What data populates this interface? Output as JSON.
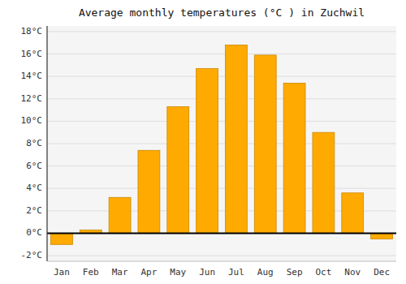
{
  "chart_data": {
    "type": "bar",
    "title": "Average monthly temperatures (°C ) in Zuchwil",
    "categories": [
      "Jan",
      "Feb",
      "Mar",
      "Apr",
      "May",
      "Jun",
      "Jul",
      "Aug",
      "Sep",
      "Oct",
      "Nov",
      "Dec"
    ],
    "values": [
      -1.0,
      0.3,
      3.2,
      7.4,
      11.3,
      14.7,
      16.8,
      15.9,
      13.4,
      9.0,
      3.6,
      -0.5
    ],
    "color": "#FFAA00",
    "ylim": [
      -2.5,
      18.5
    ],
    "yticks": [
      {
        "value": -2,
        "label": "-2°C"
      },
      {
        "value": 0,
        "label": "0°C"
      },
      {
        "value": 2,
        "label": "2°C"
      },
      {
        "value": 4,
        "label": "4°C"
      },
      {
        "value": 6,
        "label": "6°C"
      },
      {
        "value": 8,
        "label": "8°C"
      },
      {
        "value": 10,
        "label": "10°C"
      },
      {
        "value": 12,
        "label": "12°C"
      },
      {
        "value": 14,
        "label": "14°C"
      },
      {
        "value": 16,
        "label": "16°C"
      },
      {
        "value": 18,
        "label": "18°C"
      }
    ],
    "grid": true
  }
}
